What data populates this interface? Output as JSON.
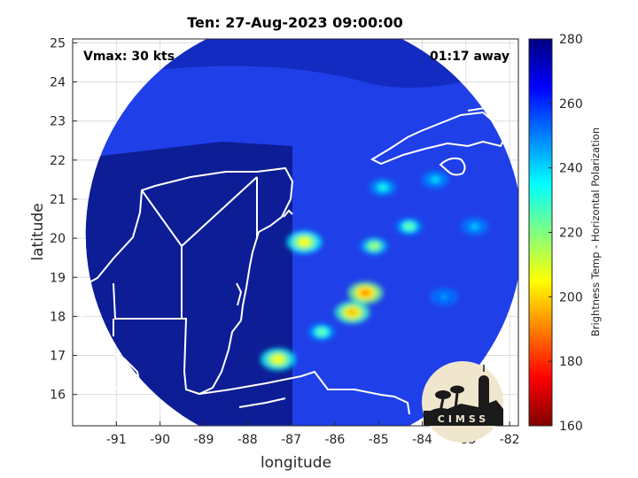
{
  "title": "Ten: 27-Aug-2023 09:00:00",
  "annotation_left": "Vmax: 30 kts",
  "annotation_right": "01:17 away",
  "xlabel": "longitude",
  "ylabel": "latitude",
  "colorbar_label": "Brightness Temp - Horizontal Polarization",
  "logo_text": "CIMSS",
  "chart_data": {
    "type": "heatmap",
    "xlim": [
      -92,
      -81.8
    ],
    "ylim": [
      15.2,
      25.1
    ],
    "x_ticks": [
      "-91",
      "-90",
      "-89",
      "-88",
      "-87",
      "-86",
      "-85",
      "-84",
      "-83",
      "-82"
    ],
    "y_ticks": [
      "16",
      "17",
      "18",
      "19",
      "20",
      "21",
      "22",
      "23",
      "24",
      "25"
    ],
    "grid": true,
    "colorbar": {
      "range": [
        160,
        280
      ],
      "ticks": [
        "280",
        "260",
        "240",
        "220",
        "200",
        "180",
        "160"
      ]
    },
    "swath": {
      "center_lon": -86.7,
      "center_lat": 20.1,
      "radius_deg": 5.0
    },
    "features": [
      {
        "lon": -86.7,
        "lat": 19.9,
        "value": 205
      },
      {
        "lon": -85.3,
        "lat": 18.6,
        "value": 192
      },
      {
        "lon": -85.6,
        "lat": 18.1,
        "value": 198
      },
      {
        "lon": -85.1,
        "lat": 19.8,
        "value": 215
      },
      {
        "lon": -87.3,
        "lat": 16.9,
        "value": 205
      },
      {
        "lon": -86.3,
        "lat": 17.6,
        "value": 222
      },
      {
        "lon": -84.3,
        "lat": 20.3,
        "value": 222
      },
      {
        "lon": -84.9,
        "lat": 21.3,
        "value": 232
      },
      {
        "lon": -83.7,
        "lat": 21.5,
        "value": 238
      },
      {
        "lon": -82.8,
        "lat": 20.3,
        "value": 240
      },
      {
        "lon": -83.5,
        "lat": 18.5,
        "value": 245
      }
    ]
  }
}
